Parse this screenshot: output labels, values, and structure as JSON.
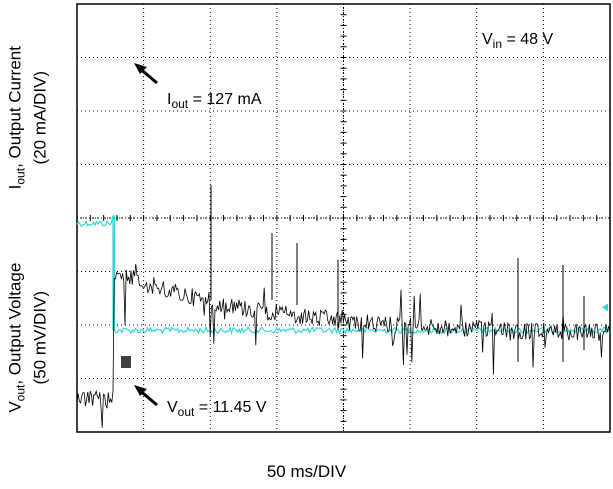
{
  "chart_data": [
    {
      "type": "line",
      "title": "",
      "ylabel_main": "I",
      "ylabel_sub": "out",
      "ylabel_rest": ", Output Current",
      "ylabel_scale": "(20 mA/DIV)",
      "series": [
        {
          "color": "#33d6d6",
          "levels_div": {
            "before": 3.9,
            "after": 1.9
          },
          "step_at_div": 0.55
        }
      ],
      "annotations": [
        {
          "main": "I",
          "sub": "out",
          "rest": " = 127 mA"
        },
        {
          "main": "V",
          "sub": "in",
          "rest": " = 48 V"
        }
      ]
    },
    {
      "type": "line",
      "title": "",
      "ylabel_main": "V",
      "ylabel_sub": "out",
      "ylabel_rest": ", Output Voltage",
      "ylabel_scale": "(50 mV/DIV)",
      "series": [
        {
          "color": "#000000",
          "levels_div": {
            "before": 0.6,
            "peak": 3.0,
            "after": 1.8
          },
          "step_at_div": 0.55
        }
      ],
      "annotations": [
        {
          "main": "V",
          "sub": "out",
          "rest": " = 11.45 V"
        }
      ]
    }
  ],
  "xlabel": "50 ms/DIV",
  "grid": true
}
